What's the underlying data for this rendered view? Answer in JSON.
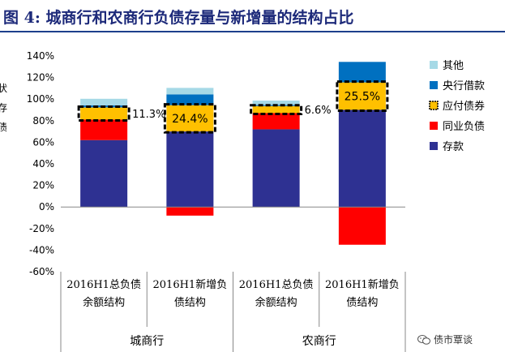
{
  "title": "图 4: 城商行和农商行负债存量与新增量的结构占比",
  "watermark": "债市覃谈",
  "chart_data": {
    "type": "bar",
    "stacked": true,
    "ylim": [
      -60,
      140
    ],
    "yticks": [
      "140%",
      "120%",
      "100%",
      "80%",
      "60%",
      "40%",
      "20%",
      "0%",
      "-20%",
      "-40%",
      "-60%"
    ],
    "categories": [
      [
        "2016H1总负债",
        "余额结构"
      ],
      [
        "2016H1新增负",
        "债结构"
      ],
      [
        "2016H1总负债",
        "余额结构"
      ],
      [
        "2016H1新增负",
        "债结构"
      ]
    ],
    "groups": [
      "城商行",
      "农商行"
    ],
    "series": [
      {
        "name": "存款",
        "color": "#2e3192",
        "values": [
          62,
          70,
          72,
          90
        ]
      },
      {
        "name": "同业负债",
        "color": "#ff0000",
        "values": [
          19,
          -8,
          15,
          -35
        ]
      },
      {
        "name": "应付债券",
        "color": "#ffc000",
        "values": [
          11.3,
          24.4,
          6.6,
          25.5
        ]
      },
      {
        "name": "央行借款",
        "color": "#0070c0",
        "values": [
          2,
          10,
          1,
          19
        ]
      },
      {
        "name": "其他",
        "color": "#a6d9e6",
        "values": [
          6,
          6,
          4,
          0
        ]
      }
    ],
    "annotations": [
      "11.3%",
      "24.4%",
      "6.6%",
      "25.5%"
    ],
    "legend_position": "right",
    "ylabel_fragments": [
      "状",
      "存",
      "债"
    ]
  }
}
